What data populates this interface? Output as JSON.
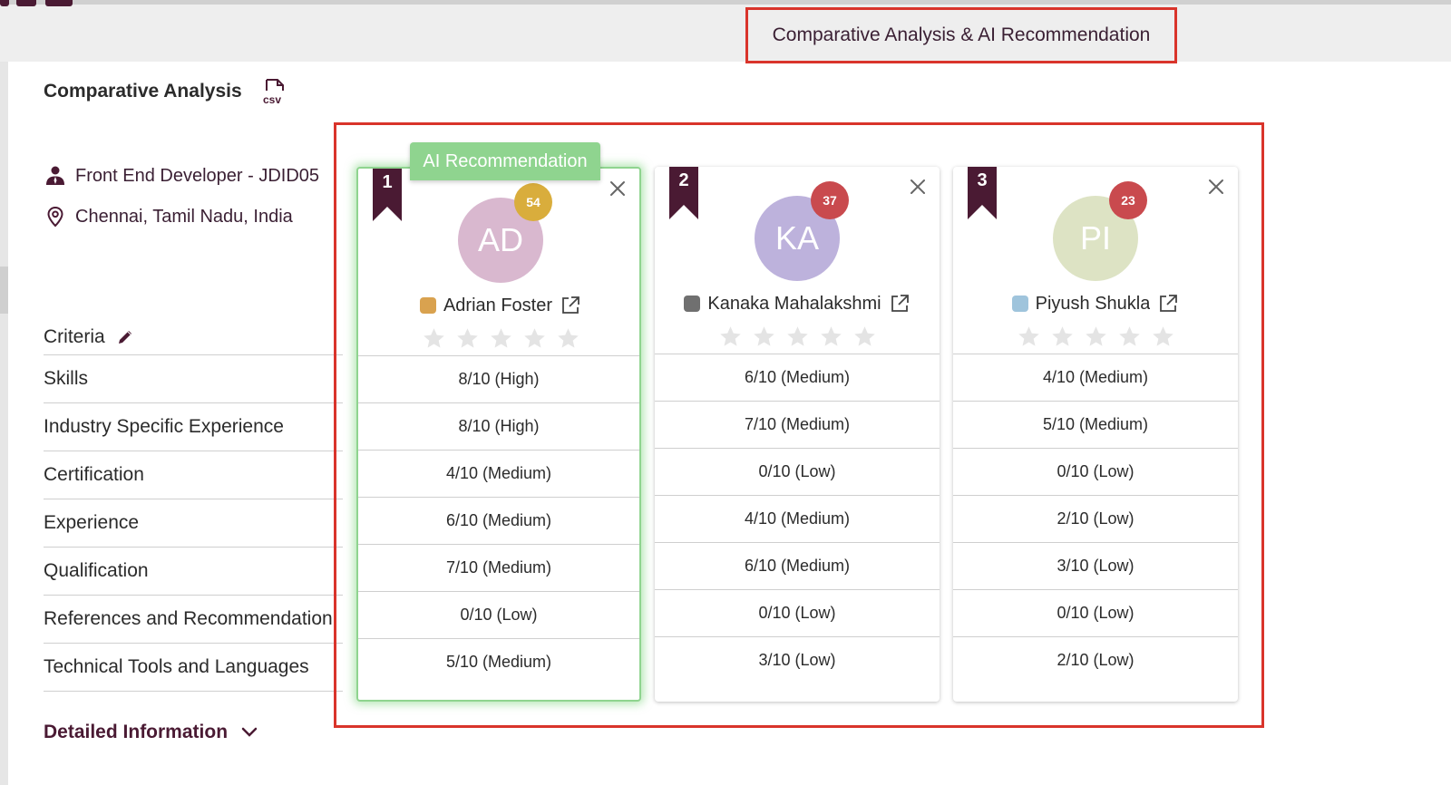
{
  "header": {
    "tab_label": "Comparative Analysis & AI Recommendation"
  },
  "section": {
    "title": "Comparative Analysis",
    "csv_icon_text": "csv",
    "detail_label": "Detailed Information"
  },
  "job": {
    "title": "Front End Developer - JDID05",
    "location": "Chennai, Tamil Nadu, India"
  },
  "criteria": {
    "header": "Criteria",
    "items": [
      "Skills",
      "Industry Specific Experience",
      "Certification",
      "Experience",
      "Qualification",
      "References and Recommendation",
      "Technical Tools and Languages"
    ]
  },
  "ai_tag": "AI Recommendation",
  "candidates": [
    {
      "rank": "1",
      "initials": "AD",
      "score": "54",
      "name": "Adrian Foster",
      "avatar_color": "#d9b8cf",
      "badge_color": "#d9ad3c",
      "dot_color": "#d9a24f",
      "recommended": true,
      "rating": 0,
      "scores": [
        "8/10 (High)",
        "8/10 (High)",
        "4/10 (Medium)",
        "6/10 (Medium)",
        "7/10 (Medium)",
        "0/10 (Low)",
        "5/10 (Medium)"
      ]
    },
    {
      "rank": "2",
      "initials": "KA",
      "score": "37",
      "name": "Kanaka Mahalakshmi",
      "avatar_color": "#bdb2dc",
      "badge_color": "#c94a4e",
      "dot_color": "#707070",
      "recommended": false,
      "rating": 0,
      "scores": [
        "6/10 (Medium)",
        "7/10 (Medium)",
        "0/10 (Low)",
        "4/10 (Medium)",
        "6/10 (Medium)",
        "0/10 (Low)",
        "3/10 (Low)"
      ]
    },
    {
      "rank": "3",
      "initials": "PI",
      "score": "23",
      "name": "Piyush Shukla",
      "avatar_color": "#dde3c4",
      "badge_color": "#c94a4e",
      "dot_color": "#9fc4dc",
      "recommended": false,
      "rating": 0,
      "scores": [
        "4/10 (Medium)",
        "5/10 (Medium)",
        "0/10 (Low)",
        "2/10 (Low)",
        "3/10 (Low)",
        "0/10 (Low)",
        "2/10 (Low)"
      ]
    }
  ]
}
